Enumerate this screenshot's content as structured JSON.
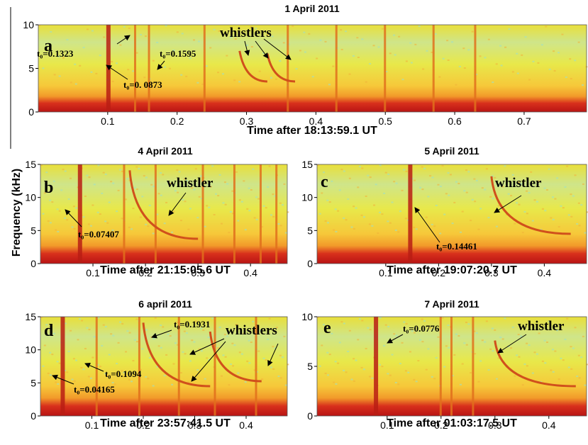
{
  "chart_data": [
    {
      "type": "spectrogram",
      "title": "1 April 2011",
      "panel_label": "a",
      "xlabel": "Time after 18:13:59.1 UT",
      "xlim": [
        0,
        0.79
      ],
      "ylim": [
        0,
        10
      ],
      "xticks": [
        0.1,
        0.2,
        0.3,
        0.4,
        0.5,
        0.6,
        0.7
      ],
      "yticks": [
        0,
        5,
        10
      ],
      "annotations": [
        "whistlers",
        "t₀=0.1323",
        "t₀=0. 0873",
        "t₀=0.1595"
      ]
    },
    {
      "type": "spectrogram",
      "title": "4 April 2011",
      "panel_label": "b",
      "xlabel": "Time after 21:15:05.6 UT",
      "ylabel": "Frequency (kHz)",
      "xlim": [
        0,
        0.47
      ],
      "ylim": [
        0,
        15
      ],
      "xticks": [
        0.1,
        0.2,
        0.3,
        0.4
      ],
      "yticks": [
        0,
        5,
        10,
        15
      ],
      "annotations": [
        "whistler",
        "t₀=0.07407"
      ]
    },
    {
      "type": "spectrogram",
      "title": "5 April 2011",
      "panel_label": "c",
      "xlabel": "Time after 19:07:20.7 UT",
      "xlim": [
        -0.03,
        0.48
      ],
      "ylim": [
        0,
        15
      ],
      "xticks": [
        0.1,
        0.2,
        0.3,
        0.4
      ],
      "yticks": [
        0,
        5,
        10,
        15
      ],
      "annotations": [
        "whistler",
        "t₀=0.14461"
      ]
    },
    {
      "type": "spectrogram",
      "title": "6 april 2011",
      "panel_label": "d",
      "xlabel": "Time after 23:57:41.5 UT",
      "xlim": [
        0,
        0.48
      ],
      "ylim": [
        0,
        15
      ],
      "xticks": [
        0.1,
        0.2,
        0.3,
        0.4
      ],
      "yticks": [
        0,
        5,
        10,
        15
      ],
      "annotations": [
        "whistlers",
        "t₀=0.1931",
        "t₀=0.1094",
        "t₀=0.04165"
      ]
    },
    {
      "type": "spectrogram",
      "title": "7 April 2011",
      "panel_label": "e",
      "xlabel": "Time after 01:03:17.5 UT",
      "xlim": [
        -0.03,
        0.47
      ],
      "ylim": [
        0,
        10
      ],
      "xticks": [
        0.1,
        0.2,
        0.3,
        0.4
      ],
      "yticks": [
        0,
        5,
        10
      ],
      "annotations": [
        "whistler",
        "t₀=0.0776"
      ]
    }
  ]
}
